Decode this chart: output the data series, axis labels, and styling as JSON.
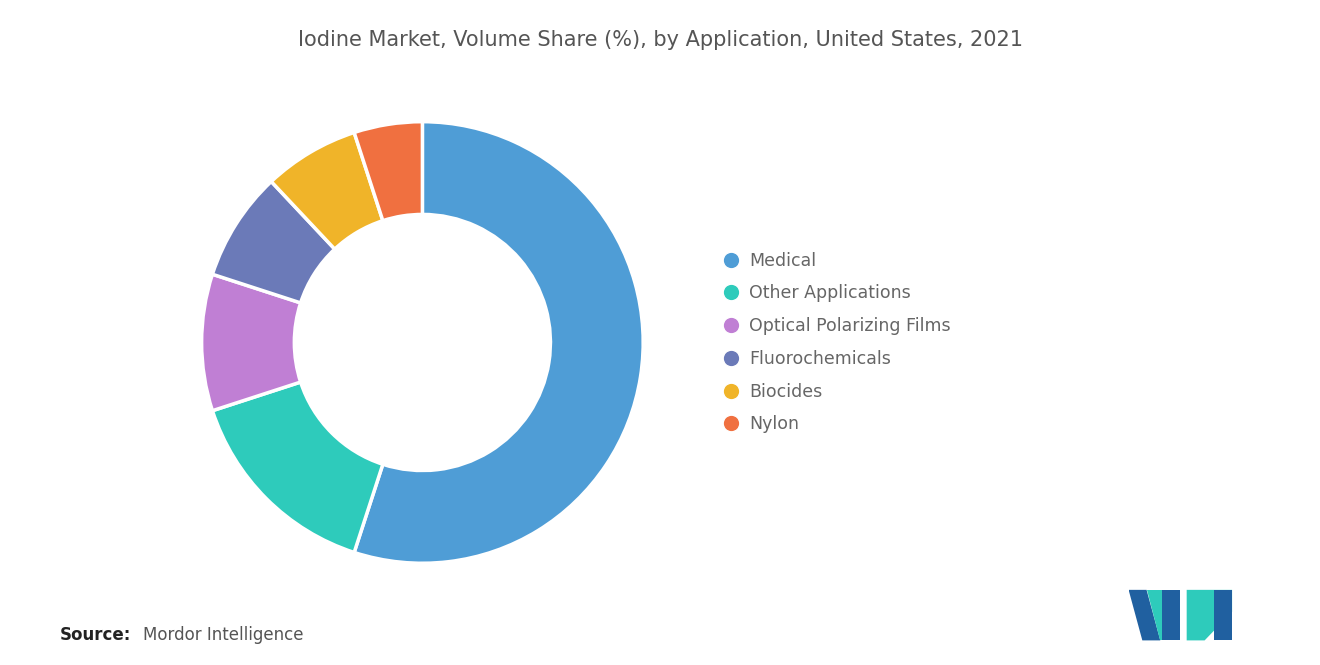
{
  "title": "Iodine Market, Volume Share (%), by Application, United States, 2021",
  "segments": [
    {
      "label": "Medical",
      "value": 55,
      "color": "#4F9DD6"
    },
    {
      "label": "Other Applications",
      "value": 15,
      "color": "#2ECBBB"
    },
    {
      "label": "Optical Polarizing Films",
      "value": 10,
      "color": "#C07FD4"
    },
    {
      "label": "Fluorochemicals",
      "value": 8,
      "color": "#6B7AB8"
    },
    {
      "label": "Biocides",
      "value": 7,
      "color": "#F0B429"
    },
    {
      "label": "Nylon",
      "value": 5,
      "color": "#F07040"
    }
  ],
  "source_bold": "Source:",
  "source_text": "Mordor Intelligence",
  "background_color": "#FFFFFF",
  "title_color": "#555555",
  "title_fontsize": 15,
  "legend_fontsize": 12.5,
  "source_fontsize": 12,
  "donut_width": 0.42,
  "logo_m_color": "#2060A0",
  "logo_t_color": "#2ECBBB"
}
